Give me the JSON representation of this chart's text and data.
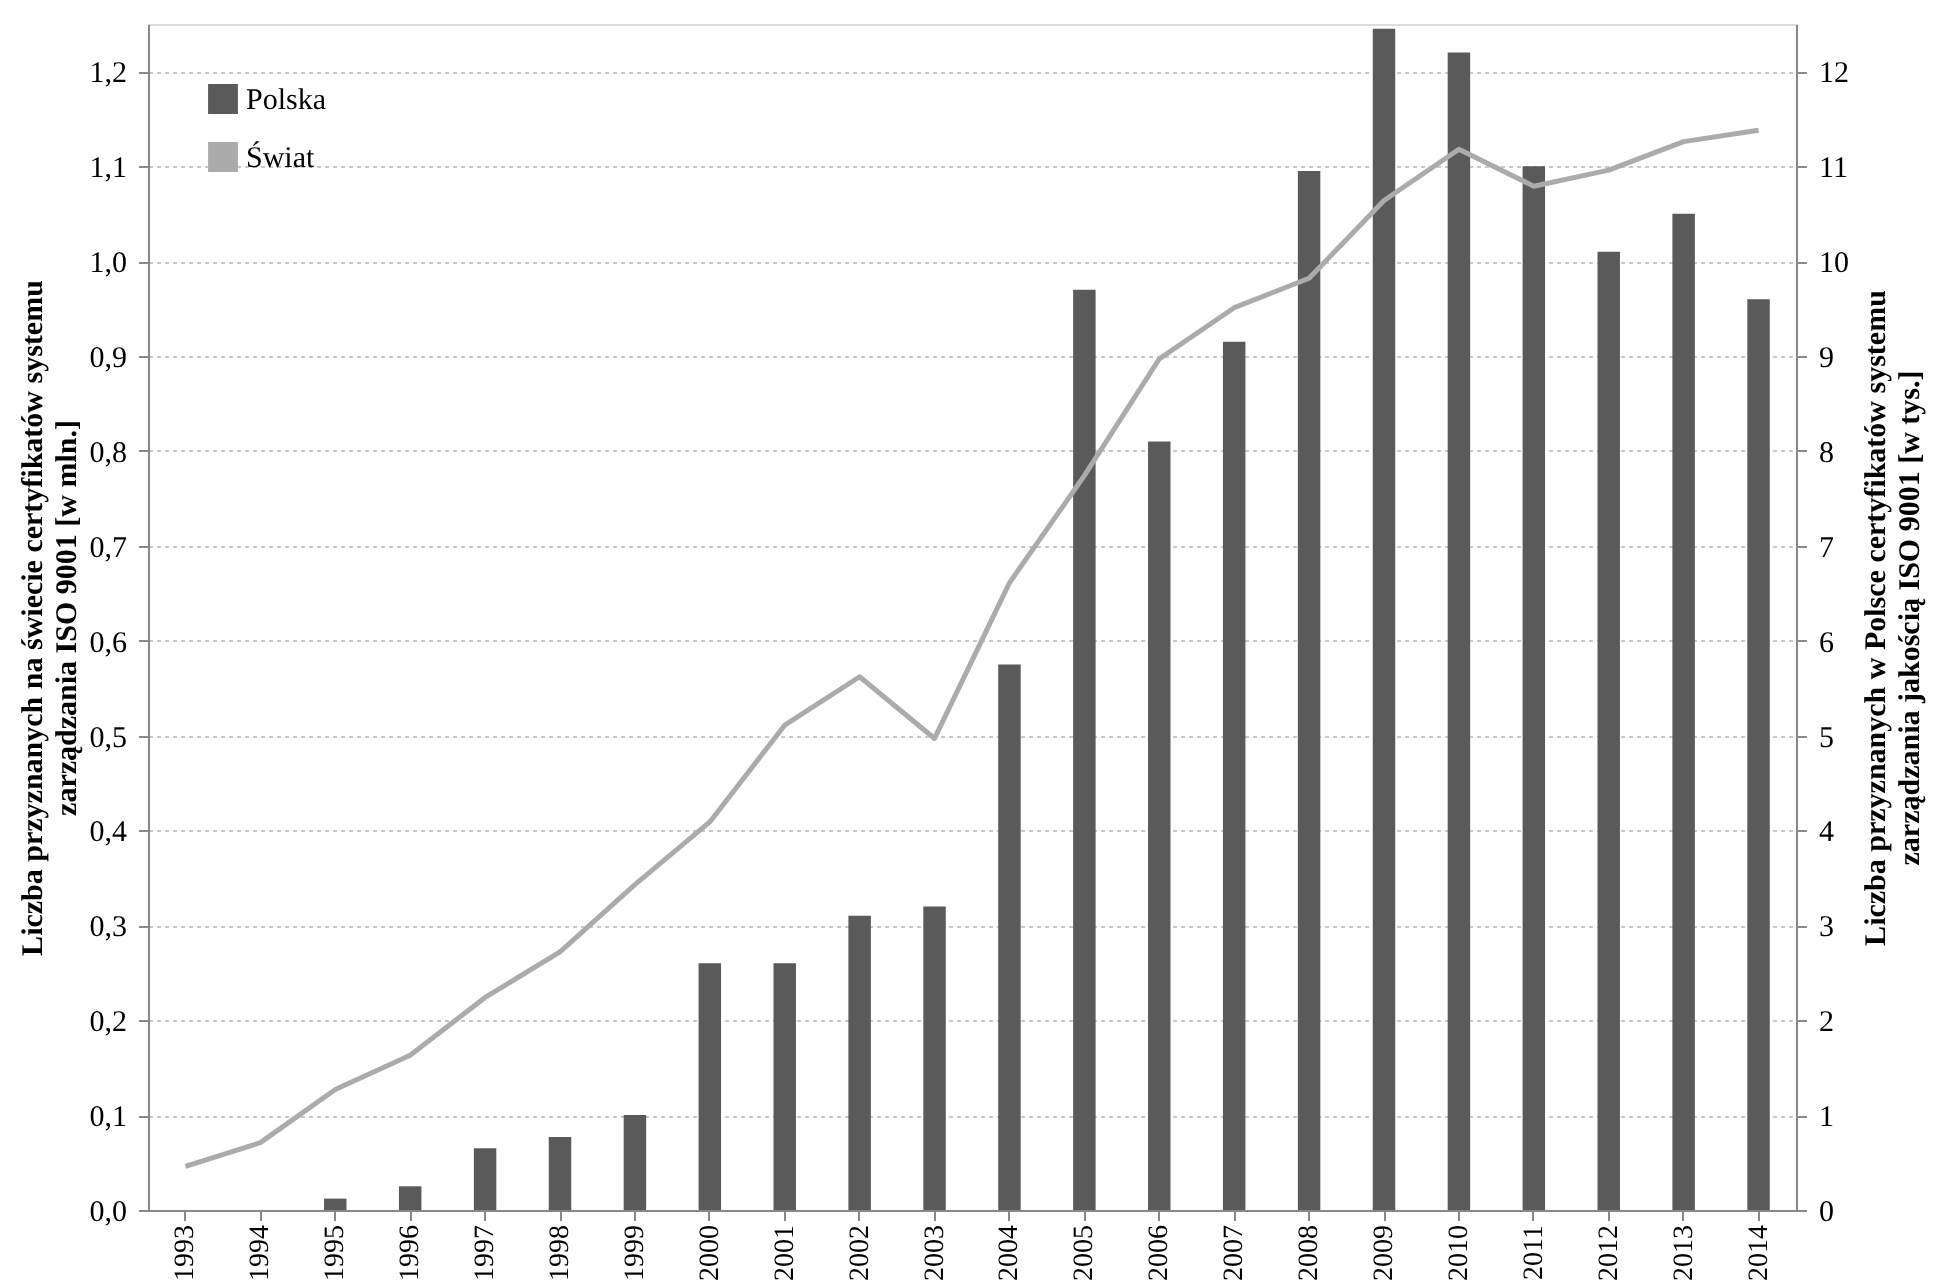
{
  "chart_data": {
    "type": "bar",
    "categories": [
      "1993",
      "1994",
      "1995",
      "1996",
      "1997",
      "1998",
      "1999",
      "2000",
      "2001",
      "2002",
      "2003",
      "2004",
      "2005",
      "2006",
      "2007",
      "2008",
      "2009",
      "2010",
      "2011",
      "2012",
      "2013",
      "2014"
    ],
    "ylabel": "Liczba przyznanych na świecie certyfikatów systemu\nzarządzania ISO 9001 [w mln.]",
    "y2label": "Liczba przyznanych w Polsce certyfikatów systemu\nzarządzania jakością ISO 9001 [w tys.]",
    "series": [
      {
        "name": "Polska",
        "axis": "y2",
        "color": "#5a5a5a",
        "values": [
          0,
          0,
          0.12,
          0.25,
          0.65,
          0.77,
          1.0,
          2.6,
          2.6,
          3.1,
          3.2,
          5.75,
          9.7,
          8.1,
          9.15,
          10.95,
          12.45,
          12.2,
          11.0,
          10.1,
          10.5,
          9.6
        ]
      },
      {
        "name": "Świat",
        "type": "line",
        "color": "#ababab",
        "values": [
          0.046,
          0.071,
          0.127,
          0.163,
          0.224,
          0.272,
          0.343,
          0.409,
          0.511,
          0.562,
          0.497,
          0.661,
          0.774,
          0.897,
          0.951,
          0.982,
          1.064,
          1.118,
          1.079,
          1.096,
          1.126,
          1.138
        ]
      }
    ],
    "ylim": [
      0,
      1.25
    ],
    "yticks": [
      {
        "value": 0,
        "label": "0,0"
      },
      {
        "value": 0.1,
        "label": "0,1"
      },
      {
        "value": 0.2,
        "label": "0,2"
      },
      {
        "value": 0.3,
        "label": "0,3"
      },
      {
        "value": 0.4,
        "label": "0,4"
      },
      {
        "value": 0.5,
        "label": "0,5"
      },
      {
        "value": 0.6,
        "label": "0,6"
      },
      {
        "value": 0.7,
        "label": "0,7"
      },
      {
        "value": 0.8,
        "label": "0,8"
      },
      {
        "value": 0.9,
        "label": "0,9"
      },
      {
        "value": 1.0,
        "label": "1,0"
      },
      {
        "value": 1.1,
        "label": "1,1"
      },
      {
        "value": 1.2,
        "label": "1,2"
      }
    ],
    "y2lim": [
      0,
      12.5
    ],
    "y2ticks": [
      0,
      1,
      2,
      3,
      4,
      5,
      6,
      7,
      8,
      9,
      10,
      11,
      12
    ],
    "grid": "y",
    "legend": "top left",
    "line_style": "solid",
    "marker": "none"
  }
}
